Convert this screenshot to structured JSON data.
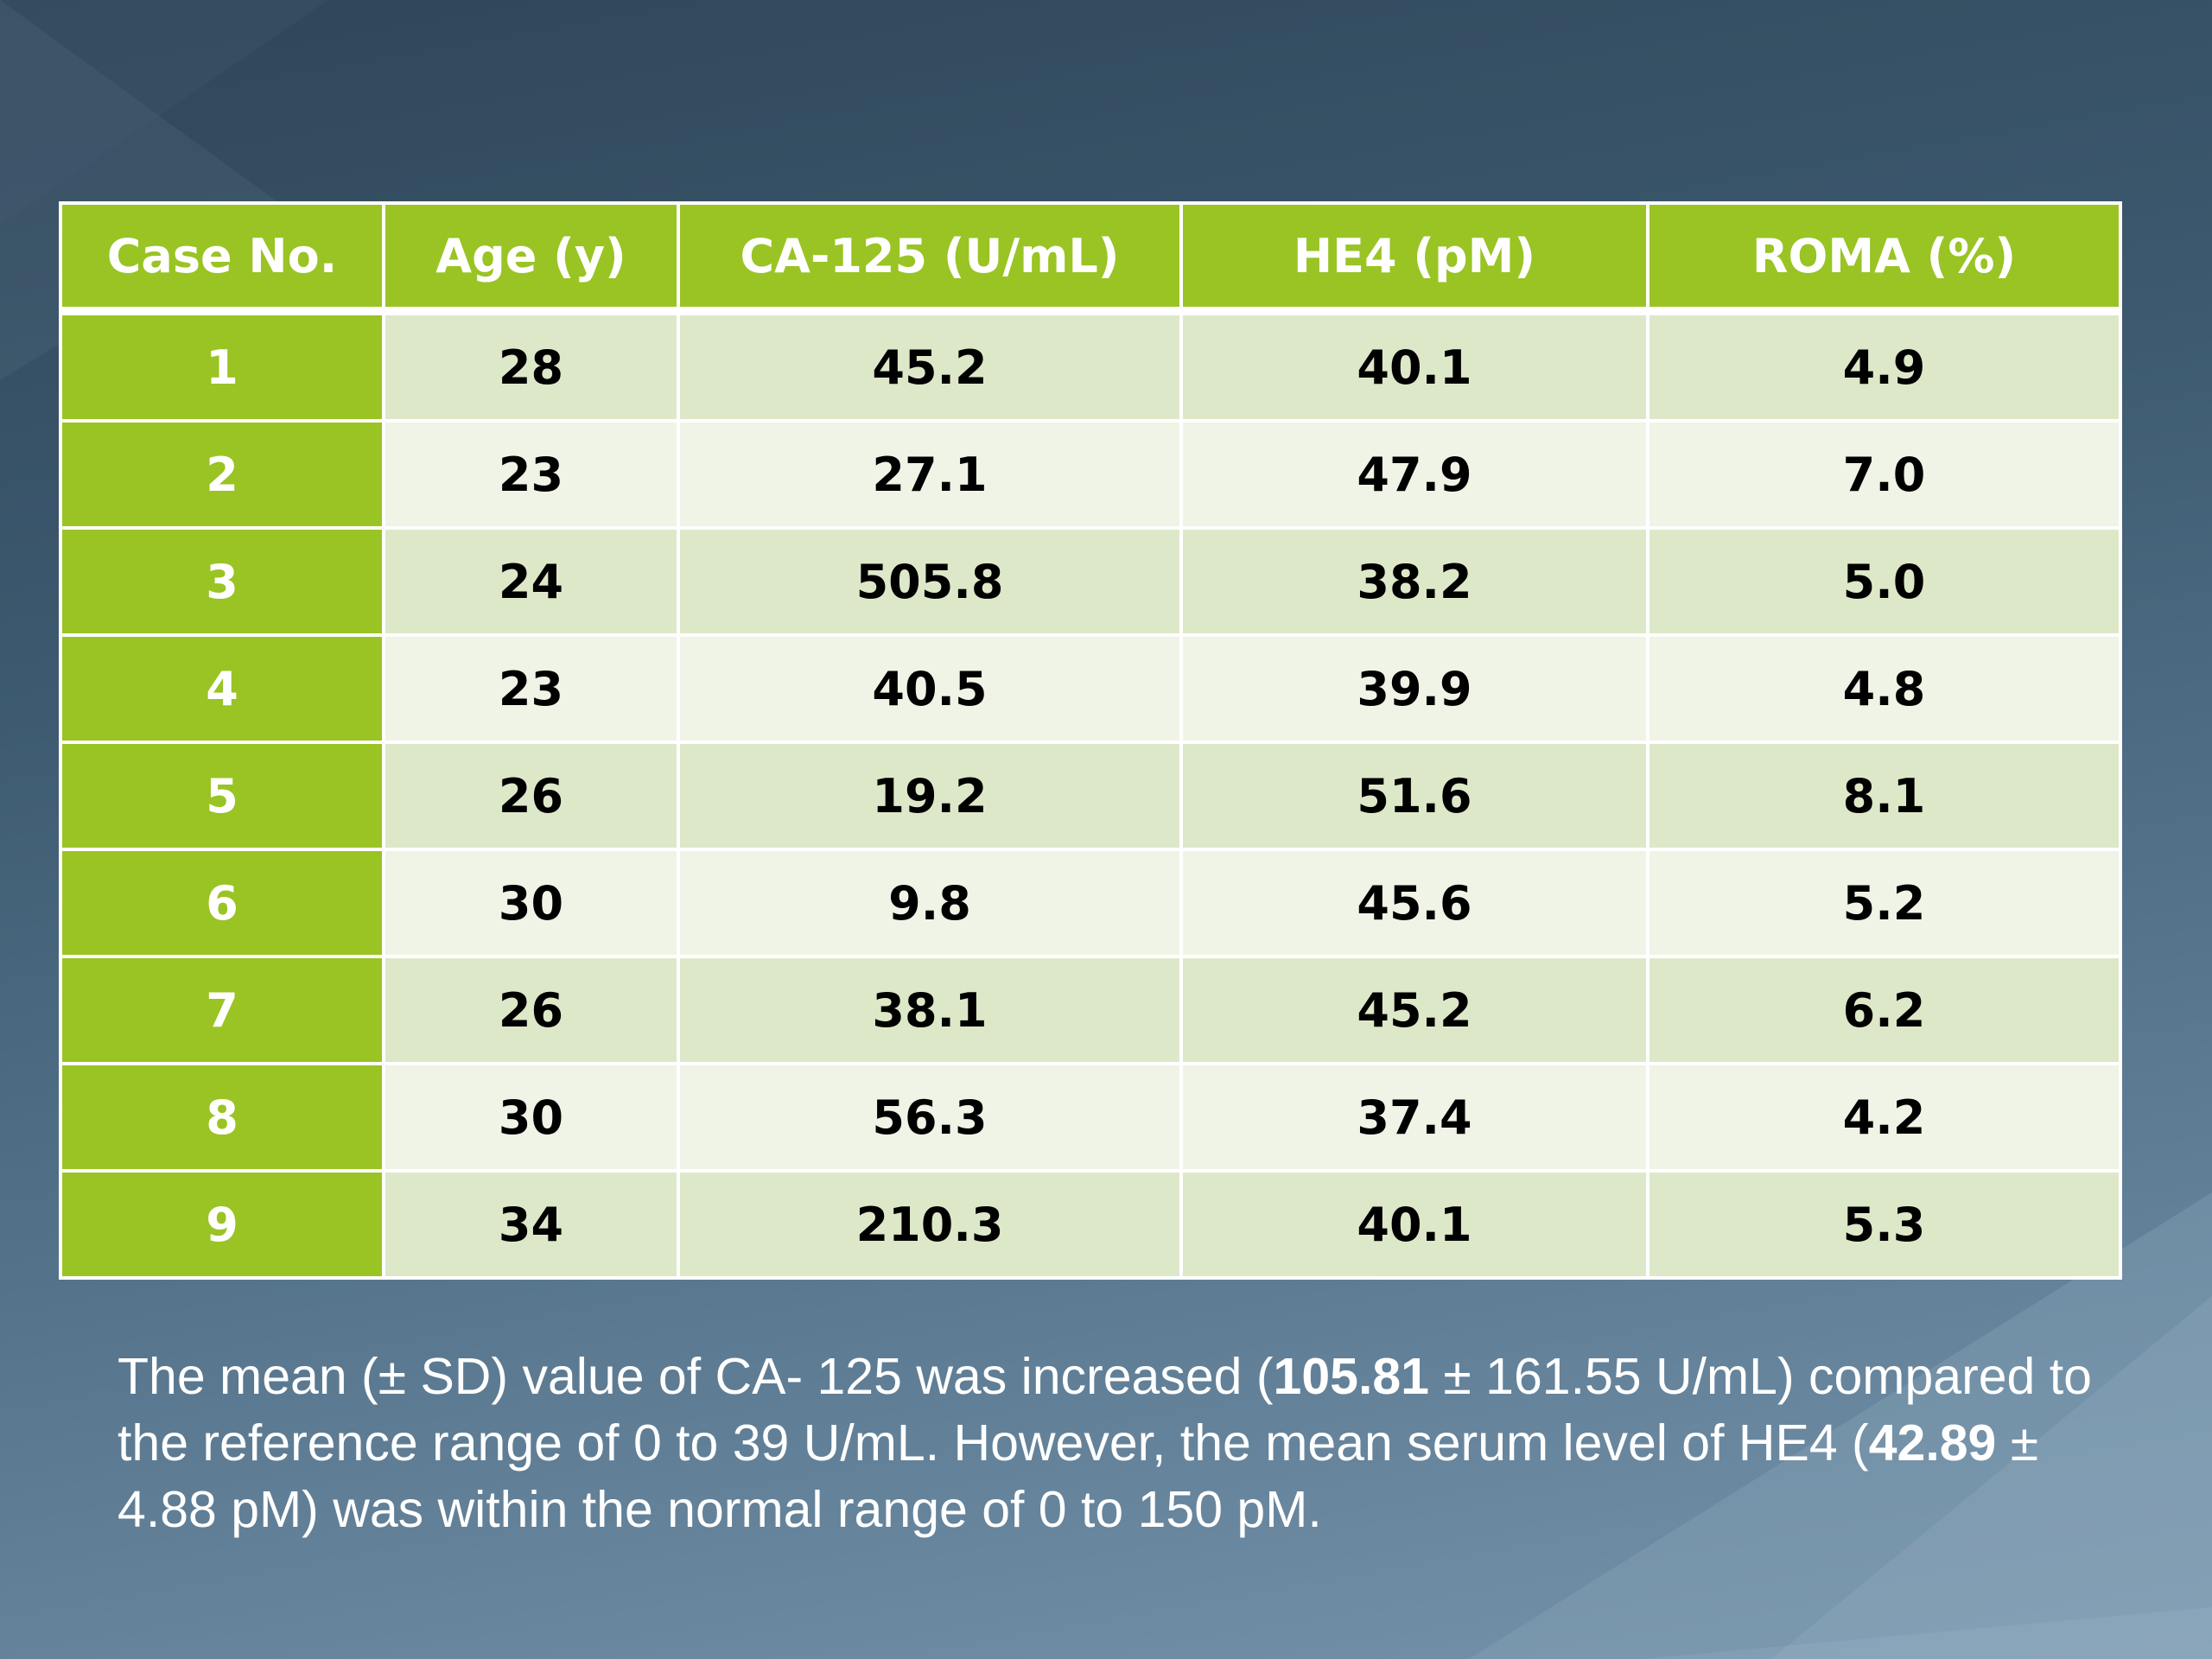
{
  "colors": {
    "header_green": "#99c424",
    "row_light": "#dde8c9",
    "row_lighter": "#eff4e6",
    "background_dark": "#2f4659",
    "background_light": "#7694ab"
  },
  "table": {
    "headers": [
      "Case No.",
      "Age (y)",
      "CA-125 (U/mL)",
      "HE4 (pM)",
      "ROMA (%)"
    ],
    "rows": [
      [
        "1",
        "28",
        "45.2",
        "40.1",
        "4.9"
      ],
      [
        "2",
        "23",
        "27.1",
        "47.9",
        "7.0"
      ],
      [
        "3",
        "24",
        "505.8",
        "38.2",
        "5.0"
      ],
      [
        "4",
        "23",
        "40.5",
        "39.9",
        "4.8"
      ],
      [
        "5",
        "26",
        "19.2",
        "51.6",
        "8.1"
      ],
      [
        "6",
        "30",
        "9.8",
        "45.6",
        "5.2"
      ],
      [
        "7",
        "26",
        "38.1",
        "45.2",
        "6.2"
      ],
      [
        "8",
        "30",
        "56.3",
        "37.4",
        "4.2"
      ],
      [
        "9",
        "34",
        "210.3",
        "40.1",
        "5.3"
      ]
    ]
  },
  "summary": {
    "p1": "The mean (± SD) value of CA- 125 was increased (",
    "b1": "105.81",
    "p2": " ± 161.55 U/mL) compared to the reference range of 0 to 39 U/mL. However, the mean serum level of HE4 (",
    "b2": "42.89",
    "p3": " ± 4.88 pM) was within the normal range of 0 to 150 pM."
  }
}
